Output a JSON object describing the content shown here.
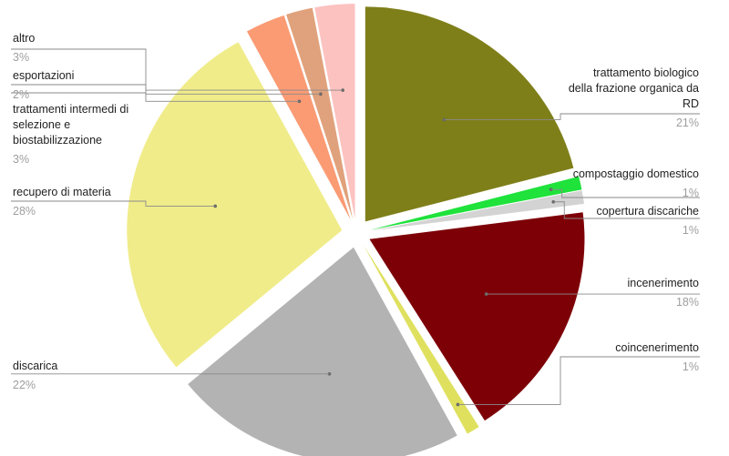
{
  "chart_data": {
    "type": "pie",
    "title": "",
    "exploded": true,
    "start_angle_deg": 90,
    "direction": "clockwise",
    "slices": [
      {
        "label": "trattamento biologico della frazione organica da RD",
        "label_lines": [
          "trattamento biologico",
          "della frazione organica da",
          "RD"
        ],
        "value": 21,
        "pct_label": "21%",
        "color": "#7f7f1a"
      },
      {
        "label": "compostaggio domestico",
        "label_lines": [
          "compostaggio domestico"
        ],
        "value": 1,
        "pct_label": "1%",
        "color": "#1fe23b"
      },
      {
        "label": "copertura discariche",
        "label_lines": [
          "copertura discariche"
        ],
        "value": 1,
        "pct_label": "1%",
        "color": "#d3d3d3"
      },
      {
        "label": "incenerimento",
        "label_lines": [
          "incenerimento"
        ],
        "value": 18,
        "pct_label": "18%",
        "color": "#7d0007"
      },
      {
        "label": "coincenerimento",
        "label_lines": [
          "coincenerimento"
        ],
        "value": 1,
        "pct_label": "1%",
        "color": "#dfe05e"
      },
      {
        "label": "discarica",
        "label_lines": [
          "discarica"
        ],
        "value": 22,
        "pct_label": "22%",
        "color": "#b3b3b3"
      },
      {
        "label": "recupero di materia",
        "label_lines": [
          "recupero di materia"
        ],
        "value": 28,
        "pct_label": "28%",
        "color": "#f0ec8a"
      },
      {
        "label": "trattamenti intermedi di selezione e biostabilizzazione",
        "label_lines": [
          "trattamenti intermedi di",
          "selezione e",
          "biostabilizzazione"
        ],
        "value": 3,
        "pct_label": "3%",
        "color": "#fa9b74"
      },
      {
        "label": "esportazioni",
        "label_lines": [
          "esportazioni"
        ],
        "value": 2,
        "pct_label": "2%",
        "color": "#e0a27c"
      },
      {
        "label": "altro",
        "label_lines": [
          "altro"
        ],
        "value": 3,
        "pct_label": "3%",
        "color": "#fcc2c0"
      }
    ]
  }
}
